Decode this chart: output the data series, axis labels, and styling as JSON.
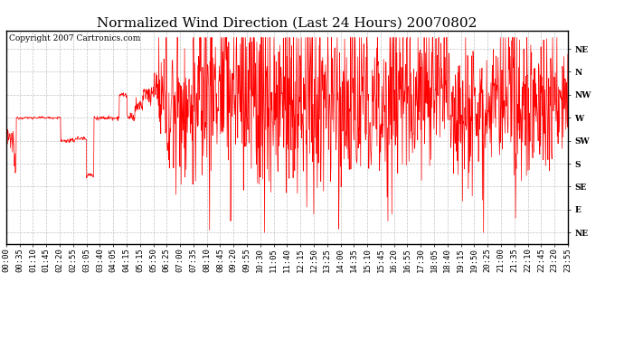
{
  "title": "Normalized Wind Direction (Last 24 Hours) 20070802",
  "copyright": "Copyright 2007 Cartronics.com",
  "line_color": "#ff0000",
  "bg_color": "#ffffff",
  "plot_bg_color": "#ffffff",
  "grid_color": "#bbbbbb",
  "ytick_labels": [
    "NE",
    "N",
    "NW",
    "W",
    "SW",
    "S",
    "SE",
    "E",
    "NE"
  ],
  "ytick_values": [
    9,
    8,
    7,
    6,
    5,
    4,
    3,
    2,
    1
  ],
  "ylim": [
    0.5,
    9.8
  ],
  "xtick_labels": [
    "00:00",
    "00:35",
    "01:10",
    "01:45",
    "02:20",
    "02:55",
    "03:05",
    "03:40",
    "04:05",
    "04:15",
    "05:15",
    "05:50",
    "06:25",
    "07:00",
    "07:35",
    "08:10",
    "08:45",
    "09:20",
    "09:55",
    "10:30",
    "11:05",
    "11:40",
    "12:15",
    "12:50",
    "13:25",
    "14:00",
    "14:35",
    "15:10",
    "15:45",
    "16:20",
    "16:55",
    "17:30",
    "18:05",
    "18:40",
    "19:15",
    "19:50",
    "20:25",
    "21:00",
    "21:35",
    "22:10",
    "22:45",
    "23:20",
    "23:55"
  ],
  "title_fontsize": 11,
  "label_fontsize": 6.5,
  "copyright_fontsize": 6.5
}
